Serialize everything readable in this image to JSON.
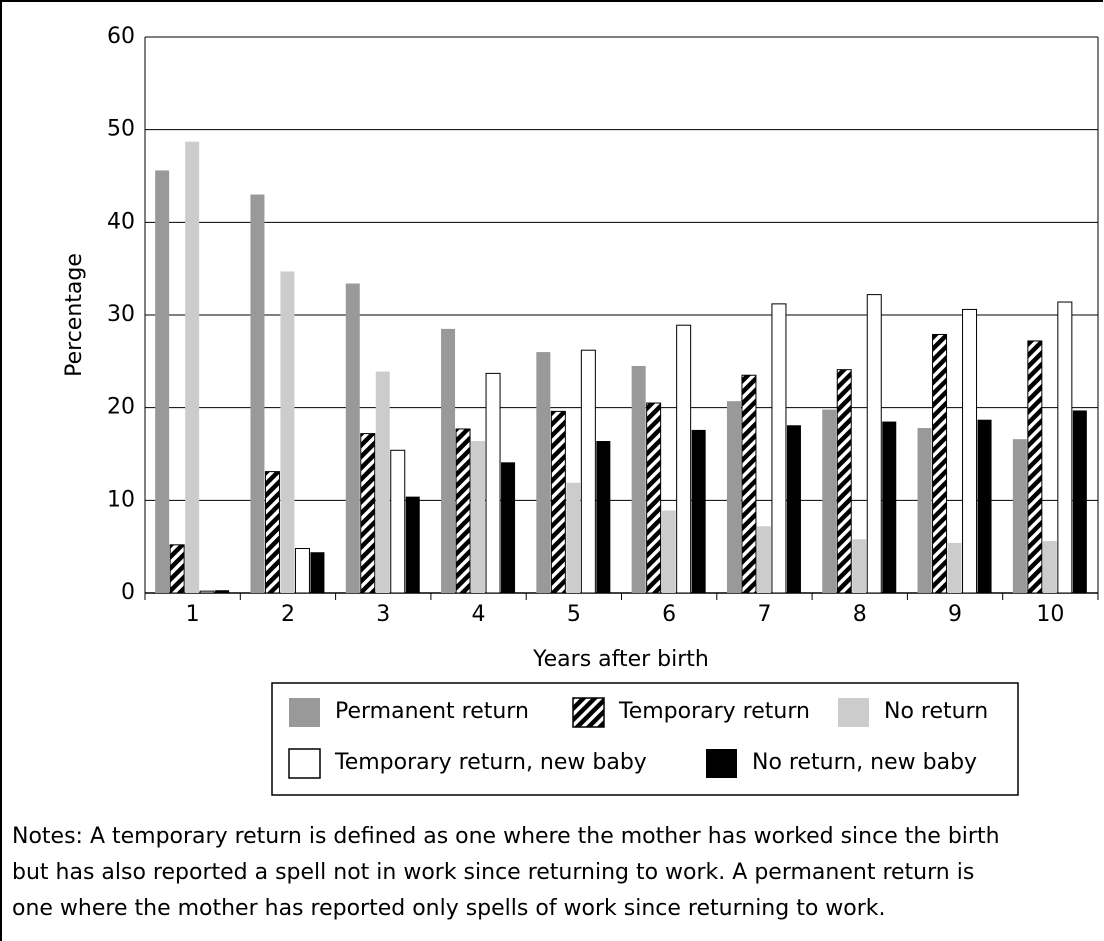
{
  "chart_data": {
    "type": "bar",
    "xlabel": "Years after birth",
    "ylabel": "Percentage",
    "categories": [
      "1",
      "2",
      "3",
      "4",
      "5",
      "6",
      "7",
      "8",
      "9",
      "10"
    ],
    "series": [
      {
        "name": "Permanent return",
        "color": "#999999",
        "values": [
          45.6,
          43.0,
          33.4,
          28.5,
          26.0,
          24.5,
          20.7,
          19.8,
          17.8,
          16.6
        ]
      },
      {
        "name": "Temporary return",
        "color": "#000000",
        "hatch": true,
        "values": [
          5.2,
          13.1,
          17.2,
          17.7,
          19.6,
          20.5,
          23.5,
          24.1,
          27.9,
          27.2
        ]
      },
      {
        "name": "No return",
        "color": "#cccccc",
        "values": [
          48.7,
          34.7,
          23.9,
          16.4,
          11.9,
          8.9,
          7.2,
          5.8,
          5.4,
          5.6
        ]
      },
      {
        "name": "Temporary return, new baby",
        "color": "#ffffff",
        "values": [
          0.2,
          4.8,
          15.4,
          23.7,
          26.2,
          28.9,
          31.2,
          32.2,
          30.6,
          31.4
        ]
      },
      {
        "name": "No return, new baby",
        "color": "#000000",
        "values": [
          0.3,
          4.4,
          10.4,
          14.1,
          16.4,
          17.6,
          18.1,
          18.5,
          18.7,
          19.7
        ]
      }
    ],
    "ylim": [
      0,
      60
    ],
    "yticks": [
      0,
      10,
      20,
      30,
      40,
      50,
      60
    ],
    "grid": true,
    "notes": [
      "Notes: A temporary return is defined as one where the mother has worked since the birth",
      "but has also reported a spell not in work since returning to work.  A permanent return is",
      "one where the mother has reported only spells of work since returning to work."
    ]
  }
}
